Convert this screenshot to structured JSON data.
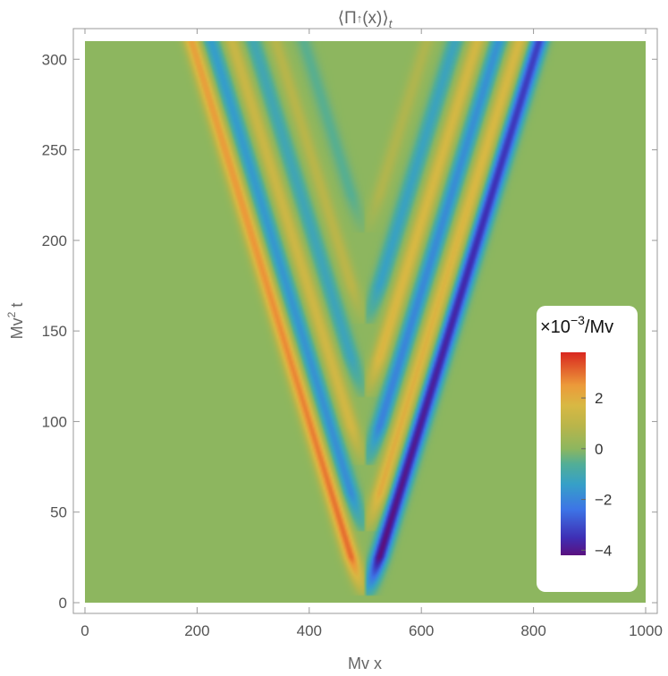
{
  "chart_data": {
    "type": "heatmap",
    "title": "⟨Π↑(x)⟩t",
    "title_parts": {
      "open": "⟨Π",
      "arrow": "↑",
      "arg": "(x)⟩",
      "sub": "t"
    },
    "xlabel": "Mv x",
    "ylabel": "Mv² t",
    "ylabel_parts": {
      "pre": "Mv",
      "sup": "2",
      "post": " t"
    },
    "xlim": [
      0,
      1000
    ],
    "ylim": [
      0,
      310
    ],
    "x_ticks": [
      0,
      200,
      400,
      600,
      800,
      1000
    ],
    "y_ticks": [
      0,
      50,
      100,
      150,
      200,
      250,
      300
    ],
    "x_tick_labels": [
      "0",
      "200",
      "400",
      "600",
      "800",
      "1000"
    ],
    "y_tick_labels": [
      "0",
      "50",
      "100",
      "150",
      "200",
      "250",
      "300"
    ],
    "background_value": 0,
    "center_x": 500,
    "front_speed": 1.0,
    "colorbar": {
      "title": "×10⁻³/Mv",
      "title_parts": {
        "pre": "×10",
        "sup": "−3",
        "post": "/Mv"
      },
      "range": [
        -4.2,
        3.8
      ],
      "ticks": [
        2,
        0,
        -2,
        -4
      ],
      "tick_labels": [
        "2",
        "0",
        "−2",
        "−4"
      ],
      "stops": [
        {
          "v": -4.2,
          "color": "#5a117f"
        },
        {
          "v": -3.5,
          "color": "#3e2fb5"
        },
        {
          "v": -2.4,
          "color": "#3d74e6"
        },
        {
          "v": -1.4,
          "color": "#36a0c8"
        },
        {
          "v": -0.6,
          "color": "#52ae96"
        },
        {
          "v": 0.0,
          "color": "#8db65f"
        },
        {
          "v": 0.9,
          "color": "#b9b54a"
        },
        {
          "v": 1.7,
          "color": "#d8b843"
        },
        {
          "v": 2.5,
          "color": "#ec9a3a"
        },
        {
          "v": 3.8,
          "color": "#d9271f"
        }
      ]
    },
    "series": [
      {
        "description_side": "left",
        "bands": [
          {
            "offset": 0,
            "value": 2.7
          },
          {
            "offset": 35,
            "value": -1.7
          },
          {
            "offset": 72,
            "value": 1.5
          },
          {
            "offset": 110,
            "value": -1.2
          },
          {
            "offset": 150,
            "value": 1.0
          },
          {
            "offset": 200,
            "value": -0.6
          }
        ]
      },
      {
        "description_side": "right",
        "bands": [
          {
            "offset": 0,
            "value": -3.8
          },
          {
            "offset": 35,
            "value": 1.9
          },
          {
            "offset": 72,
            "value": -2.0
          },
          {
            "offset": 110,
            "value": 1.8
          },
          {
            "offset": 150,
            "value": -1.4
          },
          {
            "offset": 200,
            "value": 0.8
          }
        ]
      }
    ]
  }
}
